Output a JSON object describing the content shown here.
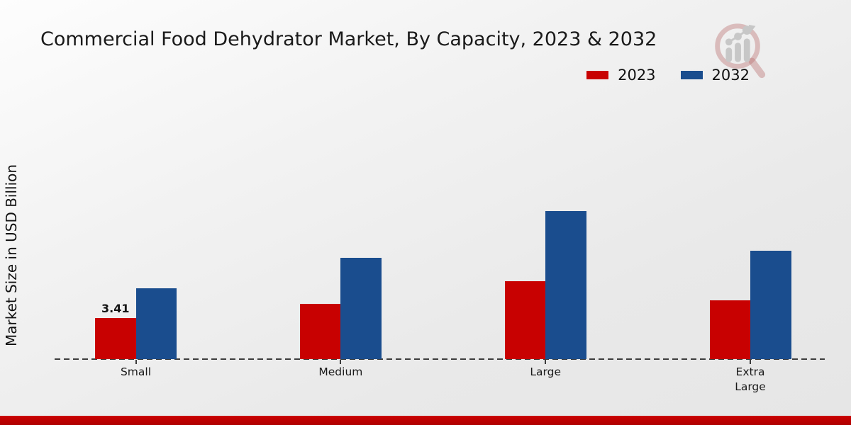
{
  "title": "Commercial Food Dehydrator Market, By Capacity, 2023 & 2032",
  "y_axis_label": "Market Size in USD Billion",
  "legend": {
    "items": [
      {
        "label": "2023",
        "color": "#c80101"
      },
      {
        "label": "2032",
        "color": "#1a4d8e"
      }
    ],
    "position": "top-right"
  },
  "chart_data": {
    "type": "bar",
    "categories": [
      "Small",
      "Medium",
      "Large",
      "Extra Large"
    ],
    "series": [
      {
        "name": "2023",
        "color": "#c80101",
        "values": [
          3.41,
          4.6,
          6.5,
          4.9
        ]
      },
      {
        "name": "2032",
        "color": "#1a4d8e",
        "values": [
          5.9,
          8.4,
          12.3,
          9.0
        ]
      }
    ],
    "annotations": [
      {
        "category": "Small",
        "series": "2023",
        "text": "3.41"
      }
    ],
    "title": "Commercial Food Dehydrator Market, By Capacity, 2023 & 2032",
    "xlabel": "",
    "ylabel": "Market Size in USD Billion",
    "grid": false,
    "baseline_style": "dashed",
    "legend_position": "top-right"
  },
  "watermark": {
    "icon": "magnifier-bar-chart-logo"
  },
  "footer": {
    "accent_color": "#c00000"
  },
  "colors": {
    "series_2023": "#c80101",
    "series_2032": "#1a4d8e",
    "text": "#1a1a1a",
    "baseline": "#3c3c3c",
    "background_top": "#fdfdfd",
    "background_bottom": "#e6e6e6"
  }
}
